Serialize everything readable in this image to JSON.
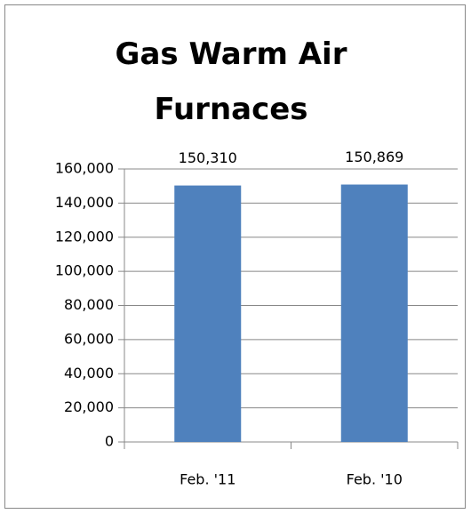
{
  "chart_data": {
    "type": "bar",
    "title": "Gas Warm Air Furnaces",
    "categories": [
      "Feb. '11",
      "Feb. '10"
    ],
    "values": [
      150310,
      150869
    ],
    "value_labels": [
      "150,310",
      "150,869"
    ],
    "color": "#4f81bd",
    "ylim": [
      0,
      160000
    ],
    "yticks": [
      0,
      {
        "value": 20000,
        "label": "20,000"
      },
      {
        "value": 40000,
        "label": "40,000"
      },
      {
        "value": 60000,
        "label": "60,000"
      },
      {
        "value": 80000,
        "label": "80,000"
      },
      {
        "value": 100000,
        "label": "100,000"
      },
      {
        "value": 120000,
        "label": "120,000"
      },
      {
        "value": 140000,
        "label": "140,000"
      },
      {
        "value": 160000,
        "label": "160,000"
      }
    ],
    "grid": true
  }
}
